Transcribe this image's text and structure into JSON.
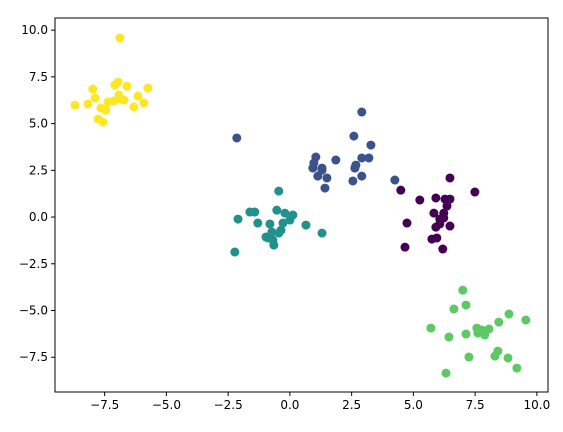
{
  "chart_data": {
    "type": "scatter",
    "xlim": [
      -9.51,
      10.45
    ],
    "ylim": [
      -9.36,
      10.65
    ],
    "xticks": [
      {
        "value": -7.5,
        "label": "−7.5"
      },
      {
        "value": -5,
        "label": "−5.0"
      },
      {
        "value": -2.5,
        "label": "−2.5"
      },
      {
        "value": 0,
        "label": "0.0"
      },
      2.5,
      {
        "value": 5,
        "label": "5.0"
      },
      7.5,
      {
        "value": 10,
        "label": "10.0"
      }
    ],
    "yticks": [
      {
        "value": -7.5,
        "label": "−7.5"
      },
      {
        "value": -5,
        "label": "−5.0"
      },
      {
        "value": -2.5,
        "label": "−2.5"
      },
      {
        "value": 0,
        "label": "0.0"
      },
      2.5,
      {
        "value": 5,
        "label": "5.0"
      },
      7.5,
      {
        "value": 10,
        "label": "10.0"
      }
    ],
    "series": [
      {
        "color": "#fde725",
        "x": [
          -6.88,
          -8.7,
          -8.18,
          -7.98,
          -7.89,
          -7.77,
          -7.57,
          -7.65,
          -7.37,
          -7.45,
          -7.09,
          -6.96,
          -7.13,
          -6.92,
          -6.72,
          -6.6,
          -6.32,
          -6.15,
          -5.91,
          -5.75,
          -6.84
        ],
        "y": [
          9.58,
          5.99,
          6.05,
          6.85,
          6.37,
          5.24,
          5.08,
          5.83,
          6.15,
          5.72,
          7.06,
          7.22,
          6.21,
          6.53,
          6.26,
          7.0,
          5.89,
          6.47,
          6.1,
          6.9,
          6.31
        ]
      },
      {
        "color": "#3b528b",
        "x": [
          -2.15,
          2.91,
          2.59,
          3.28,
          3.2,
          2.91,
          2.91,
          2.63,
          2.55,
          1.86,
          1.3,
          1.5,
          1.42,
          1.05,
          0.97,
          0.93,
          1.13,
          1.3,
          4.25,
          2.67
        ],
        "y": [
          4.23,
          5.62,
          4.33,
          3.85,
          3.16,
          3.16,
          2.19,
          2.62,
          1.93,
          3.05,
          2.62,
          2.09,
          1.55,
          3.21,
          2.89,
          2.62,
          2.19,
          2.51,
          1.98,
          2.78
        ]
      },
      {
        "color": "#21918c",
        "x": [
          -0.45,
          -2.23,
          -2.1,
          -1.62,
          -1.42,
          -1.3,
          -0.81,
          -0.97,
          -0.73,
          -0.65,
          -0.69,
          -0.53,
          -0.36,
          -0.28,
          -0.2,
          0,
          0.12,
          0.65,
          1.3,
          -0.45,
          -0.89
        ],
        "y": [
          1.39,
          -1.87,
          -0.11,
          0.27,
          0.27,
          -0.32,
          -0.37,
          -1.07,
          -0.8,
          -1.5,
          -1.23,
          0.37,
          -0.7,
          -0.32,
          0.21,
          -0.16,
          0.11,
          -0.43,
          -0.86,
          -0.86,
          -1.12
        ]
      },
      {
        "color": "#440154",
        "x": [
          4.49,
          6.48,
          7.49,
          5.26,
          5.91,
          6.28,
          6.48,
          6.36,
          6.23,
          5.83,
          4.74,
          6.07,
          6.23,
          5.91,
          6.07,
          6.48,
          4.66,
          5.75,
          5.95,
          6.19
        ],
        "y": [
          1.44,
          2.09,
          1.34,
          0.91,
          1.02,
          0.96,
          0.96,
          0.59,
          0.21,
          0.21,
          -0.32,
          -0.11,
          -0.05,
          -0.54,
          -0.37,
          -0.48,
          -1.61,
          -1.18,
          -1.12,
          -1.71
        ]
      },
      {
        "color": "#5ec962",
        "x": [
          7.0,
          7.13,
          6.64,
          5.71,
          6.44,
          7.13,
          7.57,
          7.77,
          7.89,
          8.06,
          8.46,
          8.87,
          9.55,
          7.25,
          8.42,
          8.3,
          8.83,
          9.19,
          6.32,
          7.61
        ],
        "y": [
          -3.91,
          -4.71,
          -4.92,
          -5.94,
          -6.42,
          -6.26,
          -5.94,
          -6.05,
          -6.31,
          -5.99,
          -5.62,
          -5.19,
          -5.51,
          -7.49,
          -7.17,
          -7.44,
          -7.54,
          -8.08,
          -8.35,
          -6.21
        ]
      }
    ]
  }
}
